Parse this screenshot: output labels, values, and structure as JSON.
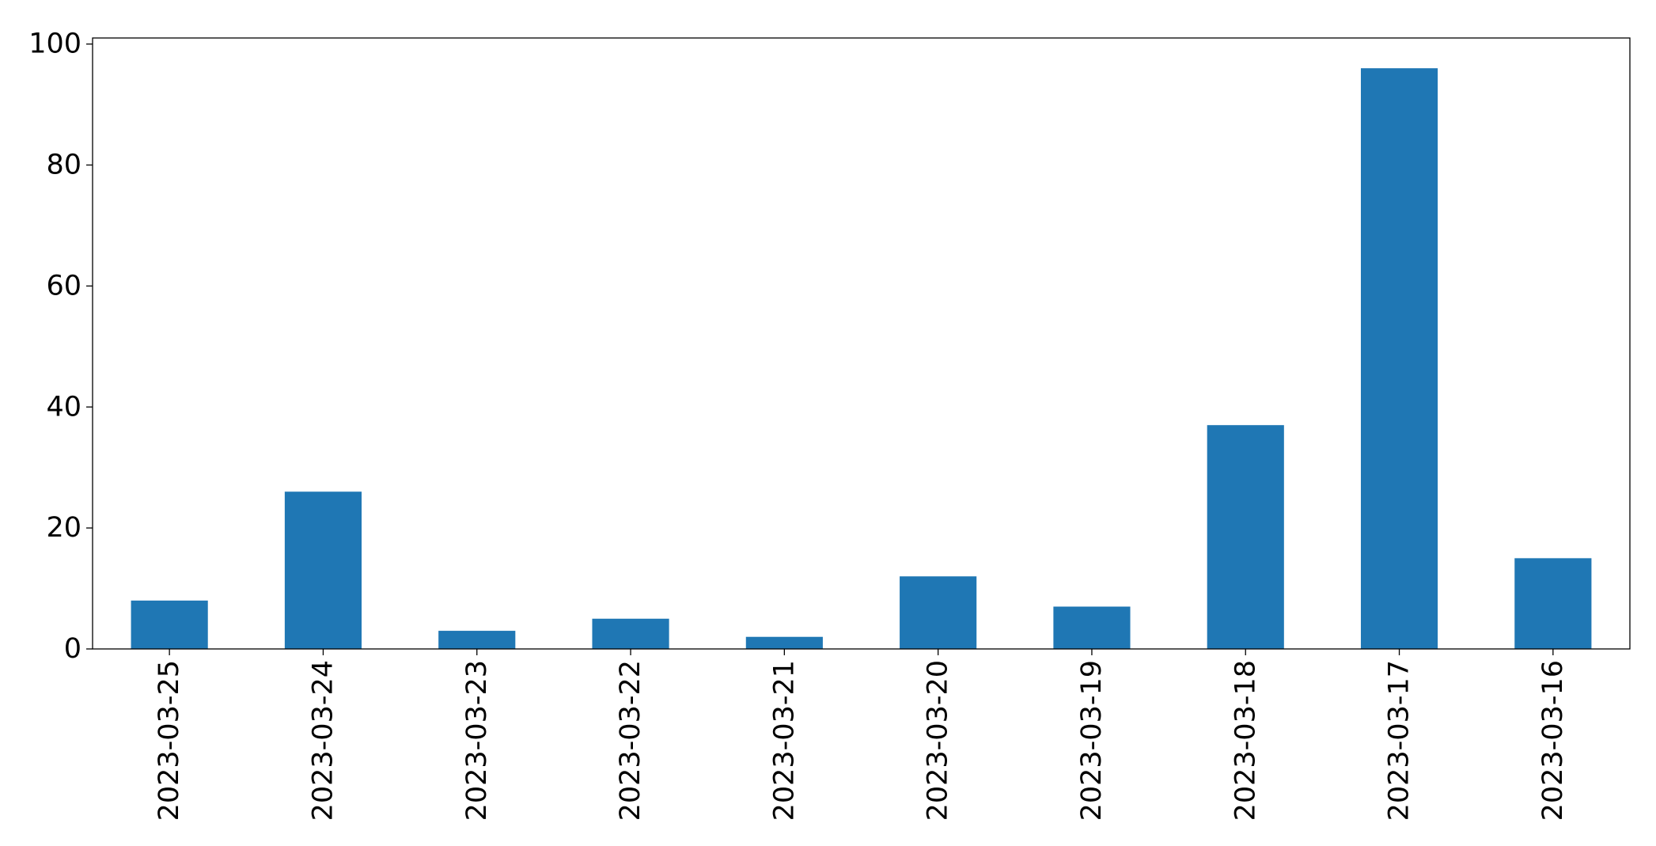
{
  "chart_data": {
    "type": "bar",
    "title": "",
    "xlabel": "",
    "ylabel": "",
    "categories": [
      "2023-03-25",
      "2023-03-24",
      "2023-03-23",
      "2023-03-22",
      "2023-03-21",
      "2023-03-20",
      "2023-03-19",
      "2023-03-18",
      "2023-03-17",
      "2023-03-16"
    ],
    "values": [
      8,
      26,
      3,
      5,
      2,
      12,
      7,
      37,
      96,
      15
    ],
    "ylim": [
      0,
      101
    ],
    "yticks": [
      0,
      20,
      40,
      60,
      80,
      100
    ],
    "grid": false,
    "legend": "none",
    "bar_color": "#1f77b4",
    "x_tick_rotation": "vertical"
  }
}
